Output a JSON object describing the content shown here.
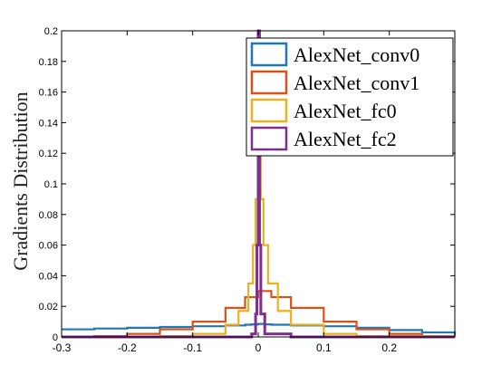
{
  "chart_data": {
    "type": "line",
    "title": "",
    "xlabel": "",
    "ylabel": "Gradients Distribution",
    "xlim": [
      -0.3,
      0.3
    ],
    "ylim": [
      0,
      0.2
    ],
    "x_ticks": [
      -0.3,
      -0.2,
      -0.1,
      0,
      0.1,
      0.2
    ],
    "x_tick_labels": [
      "-0.3",
      "-0.2",
      "-0.1",
      "0",
      "0.1",
      "0.2"
    ],
    "y_ticks": [
      0,
      0.02,
      0.04,
      0.06,
      0.08,
      0.1,
      0.12,
      0.14,
      0.16,
      0.18,
      0.2
    ],
    "y_tick_labels": [
      "0",
      "0.02",
      "0.04",
      "0.06",
      "0.08",
      "0.1",
      "0.12",
      "0.14",
      "0.16",
      "0.18",
      "0.2"
    ],
    "grid": false,
    "legend": "top-right",
    "series": [
      {
        "name": "AlexNet_conv0",
        "color": "#1f77b4",
        "x": [
          -0.3,
          -0.25,
          -0.2,
          -0.15,
          -0.1,
          -0.05,
          -0.02,
          -0.01,
          0,
          0.01,
          0.02,
          0.05,
          0.1,
          0.15,
          0.2,
          0.25,
          0.3
        ],
        "y": [
          0.005,
          0.0055,
          0.006,
          0.0065,
          0.007,
          0.0075,
          0.008,
          0.0082,
          0.0085,
          0.0082,
          0.008,
          0.0075,
          0.007,
          0.006,
          0.0045,
          0.003,
          0.001
        ]
      },
      {
        "name": "AlexNet_conv1",
        "color": "#d95319",
        "x": [
          -0.3,
          -0.25,
          -0.2,
          -0.15,
          -0.1,
          -0.05,
          -0.02,
          0,
          0.02,
          0.05,
          0.1,
          0.15,
          0.2,
          0.25,
          0.3
        ],
        "y": [
          0.0002,
          0.0005,
          0.002,
          0.005,
          0.01,
          0.019,
          0.026,
          0.03,
          0.026,
          0.019,
          0.01,
          0.005,
          0.002,
          0.0005,
          0.0002
        ]
      },
      {
        "name": "AlexNet_fc0",
        "color": "#edb120",
        "x": [
          -0.3,
          -0.15,
          -0.1,
          -0.05,
          -0.03,
          -0.015,
          -0.008,
          -0.004,
          0,
          0.004,
          0.008,
          0.015,
          0.03,
          0.05,
          0.1,
          0.15,
          0.3
        ],
        "y": [
          0,
          0.0005,
          0.002,
          0.008,
          0.017,
          0.035,
          0.06,
          0.09,
          0.12,
          0.09,
          0.06,
          0.035,
          0.017,
          0.008,
          0.002,
          0.0005,
          0
        ]
      },
      {
        "name": "AlexNet_fc2",
        "color": "#7e2f8e",
        "x": [
          -0.3,
          -0.05,
          -0.01,
          -0.004,
          -0.002,
          0,
          0.002,
          0.004,
          0.01,
          0.05,
          0.3
        ],
        "y": [
          0,
          0,
          0.002,
          0.015,
          0.06,
          0.2,
          0.06,
          0.015,
          0.002,
          0,
          0
        ]
      }
    ]
  }
}
